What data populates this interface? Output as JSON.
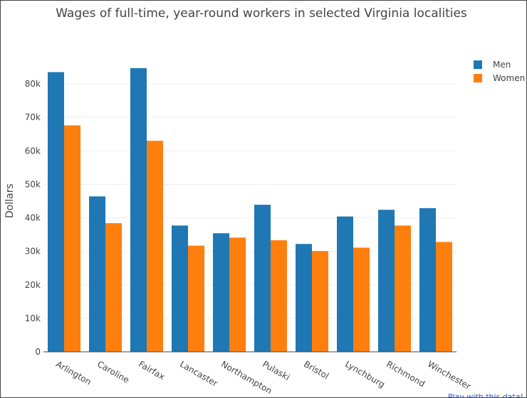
{
  "chart_data": {
    "type": "bar",
    "title": "Wages of full-time, year-round workers in selected Virginia localities",
    "xlabel": "",
    "ylabel": "Dollars",
    "ylim": [
      0,
      92000
    ],
    "yticks": [
      0,
      10000,
      20000,
      30000,
      40000,
      50000,
      60000,
      70000,
      80000
    ],
    "ytick_labels": [
      "0",
      "10k",
      "20k",
      "30k",
      "40k",
      "50k",
      "60k",
      "70k",
      "80k"
    ],
    "grid": true,
    "legend_position": "top-right",
    "categories": [
      "Arlington",
      "Caroline",
      "Fairfax",
      "Lancaster",
      "Northampton",
      "Pulaski",
      "Bristol",
      "Lynchburg",
      "Richmond",
      "Winchester"
    ],
    "series": [
      {
        "name": "Men",
        "color": "#1f77b4",
        "values": [
          83500,
          46400,
          84700,
          37700,
          35400,
          43900,
          32200,
          40400,
          42400,
          42900
        ]
      },
      {
        "name": "Women",
        "color": "#ff7f0e",
        "values": [
          67600,
          38400,
          63000,
          31700,
          34100,
          33300,
          30100,
          31100,
          37700,
          32800
        ]
      }
    ]
  },
  "footer": {
    "link_text": "Play with this data!"
  }
}
